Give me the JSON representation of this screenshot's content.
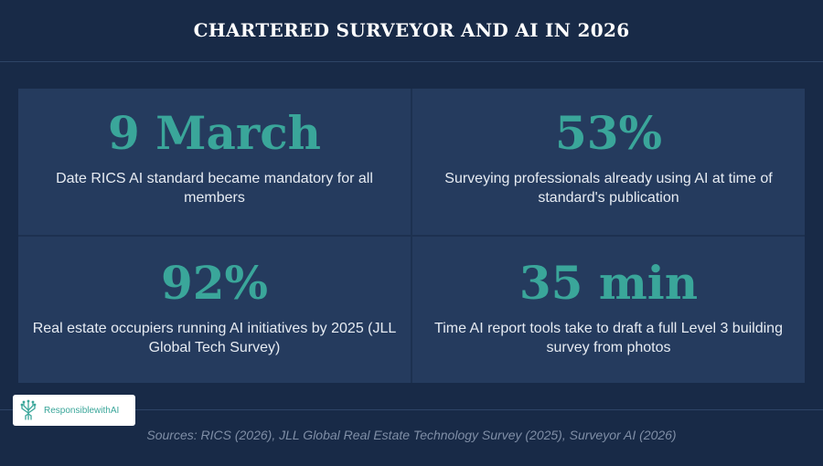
{
  "header": {
    "title": "CHARTERED SURVEYOR AND AI IN 2026"
  },
  "stats": [
    {
      "value": "9 March",
      "description": "Date RICS AI standard became mandatory for all members"
    },
    {
      "value": "53%",
      "description": "Surveying professionals already using AI at time of standard's publication"
    },
    {
      "value": "92%",
      "description": "Real estate occupiers running AI initiatives by 2025 (JLL Global Tech Survey)"
    },
    {
      "value": "35 min",
      "description": "Time AI report tools take to draft a full Level 3 building survey from photos"
    }
  ],
  "logo": {
    "text": "ResponsiblewithAI",
    "icon": "circuit-brain-icon"
  },
  "footer": {
    "sources": "Sources: RICS (2026), JLL Global Real Estate Technology Survey (2025), Surveyor AI (2026)"
  },
  "colors": {
    "background": "#182a47",
    "card": "#253b5e",
    "accent": "#3aa69a",
    "text": "#e6ebf2",
    "muted": "#7f8ea6"
  }
}
